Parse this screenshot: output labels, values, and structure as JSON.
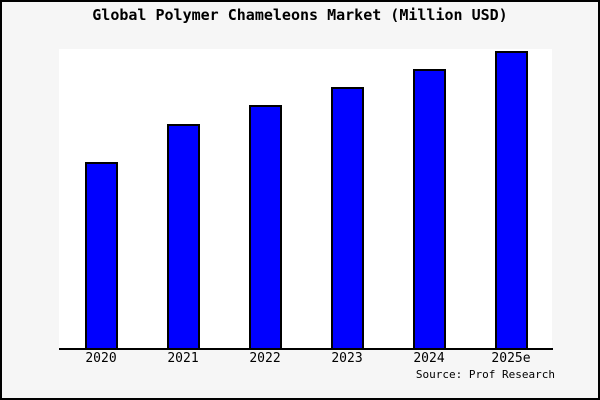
{
  "title": "Global Polymer Chameleons Market (Million USD)",
  "source_note": "Source: Prof Research",
  "chart_data": {
    "type": "bar",
    "title": "Global Polymer Chameleons Market (Million USD)",
    "categories": [
      "2020",
      "2021",
      "2022",
      "2023",
      "2024",
      "2025e"
    ],
    "values": [
      62.5,
      75.3,
      81.8,
      87.9,
      93.9,
      100
    ],
    "values_note": "No y-axis scale or gridlines shown in chart; values are bar heights relative to tallest bar (2025e = 100)",
    "xlabel": "",
    "ylabel": "",
    "legend": false,
    "grid": false,
    "y_axis_shown": false,
    "bar_fill_color": "#0000ff",
    "bar_border_color": "#000000",
    "axis_color": "#000000",
    "plot_background": "#ffffff",
    "outer_background": "#f6f6f6",
    "source_label": "Source: Prof Research"
  }
}
